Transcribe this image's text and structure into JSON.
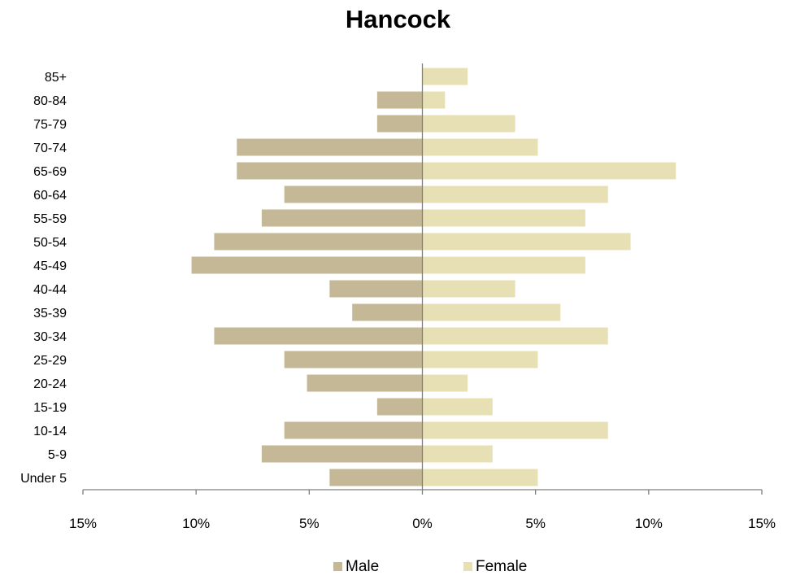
{
  "chart_data": {
    "type": "bar",
    "orientation": "horizontal",
    "title": "Hancock",
    "xlabel": "",
    "ylabel": "",
    "categories": [
      "Under 5",
      "5-9",
      "10-14",
      "15-19",
      "20-24",
      "25-29",
      "30-34",
      "35-39",
      "40-44",
      "45-49",
      "50-54",
      "55-59",
      "60-64",
      "65-69",
      "70-74",
      "75-79",
      "80-84",
      "85+"
    ],
    "series": [
      {
        "name": "Male",
        "color": "#c4b896",
        "values": [
          -4.1,
          -7.1,
          -6.1,
          -2.0,
          -5.1,
          -6.1,
          -9.2,
          -3.1,
          -4.1,
          -10.2,
          -9.2,
          -7.1,
          -6.1,
          -8.2,
          -8.2,
          -2.0,
          -2.0,
          0
        ]
      },
      {
        "name": "Female",
        "color": "#e8e0b5",
        "values": [
          5.1,
          3.1,
          8.2,
          3.1,
          2.0,
          5.1,
          8.2,
          6.1,
          4.1,
          7.2,
          9.2,
          7.2,
          8.2,
          11.2,
          5.1,
          4.1,
          1.0,
          2.0
        ]
      }
    ],
    "xlim": [
      -15,
      15
    ],
    "x_ticks": [
      -15,
      -10,
      -5,
      0,
      5,
      10,
      15
    ],
    "x_tick_labels": [
      "15%",
      "10%",
      "5%",
      "0%",
      "5%",
      "10%",
      "15%"
    ],
    "grid": false,
    "legend_position": "bottom"
  }
}
